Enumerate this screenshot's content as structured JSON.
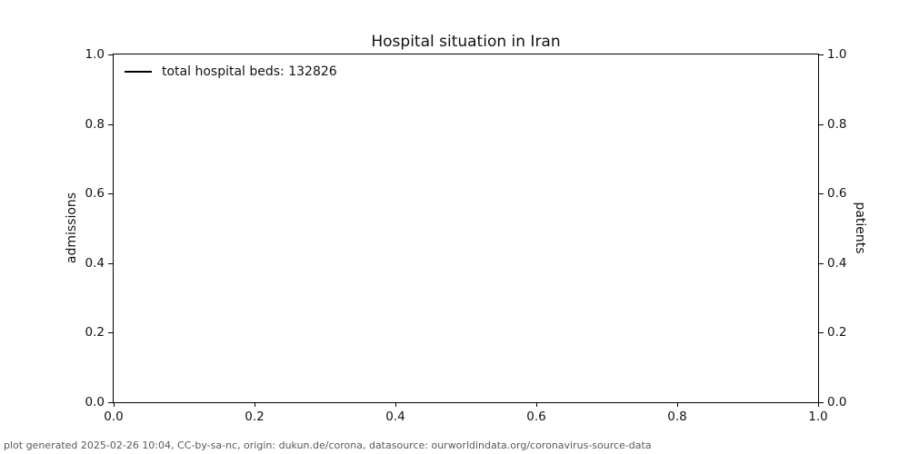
{
  "figure": {
    "title": "Hospital situation in Iran",
    "footer": "plot generated 2025-02-26 10:04, CC-by-sa-nc, origin: dukun.de/corona, datasource: ourworldindata.org/coronavirus-source-data",
    "background_color": "#ffffff",
    "axes_edge_color": "#000000",
    "footer_color": "#595959"
  },
  "chart_data": {
    "type": "line",
    "title": "Hospital situation in Iran",
    "xlabel": "",
    "ylabel_left": "admissions",
    "ylabel_right": "patients",
    "xlim": [
      0.0,
      1.0
    ],
    "ylim_left": [
      0.0,
      1.0
    ],
    "ylim_right": [
      0.0,
      1.0
    ],
    "x_ticks": [
      0.0,
      0.2,
      0.4,
      0.6,
      0.8,
      1.0
    ],
    "x_tick_labels": [
      "0.0",
      "0.2",
      "0.4",
      "0.6",
      "0.8",
      "1.0"
    ],
    "y_ticks_left": [
      0.0,
      0.2,
      0.4,
      0.6,
      0.8,
      1.0
    ],
    "y_tick_labels_left": [
      "0.0",
      "0.2",
      "0.4",
      "0.6",
      "0.8",
      "1.0"
    ],
    "y_ticks_right": [
      0.0,
      0.2,
      0.4,
      0.6,
      0.8,
      1.0
    ],
    "y_tick_labels_right": [
      "0.0",
      "0.2",
      "0.4",
      "0.6",
      "0.8",
      "1.0"
    ],
    "grid": false,
    "legend": {
      "position": "upper-left",
      "frame": false,
      "entries": [
        {
          "label": "total hospital beds: 132826",
          "color": "#000000",
          "style": "line"
        }
      ]
    },
    "series": [
      {
        "name": "total hospital beds: 132826",
        "color": "#000000",
        "x": [],
        "y": [],
        "note": "no data points visible in plot area"
      }
    ]
  }
}
